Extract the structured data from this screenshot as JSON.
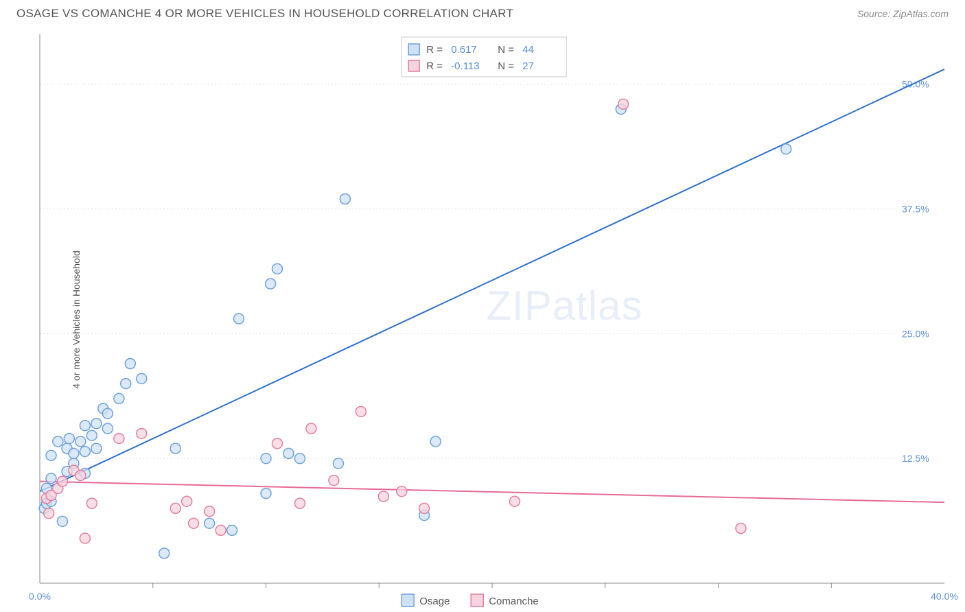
{
  "title": "OSAGE VS COMANCHE 4 OR MORE VEHICLES IN HOUSEHOLD CORRELATION CHART",
  "source": "Source: ZipAtlas.com",
  "ylabel": "4 or more Vehicles in Household",
  "watermark": "ZIPatlas",
  "chart": {
    "type": "scatter",
    "xlim": [
      0,
      40
    ],
    "ylim": [
      0,
      55
    ],
    "xtick_labels": {
      "0": "0.0%",
      "40": "40.0%"
    },
    "xtick_minor": [
      5,
      10,
      15,
      20,
      25,
      30,
      35
    ],
    "ytick_labels": {
      "12.5": "12.5%",
      "25": "25.0%",
      "37.5": "37.5%",
      "50": "50.0%"
    },
    "grid_y": [
      12.5,
      25,
      37.5,
      50
    ],
    "grid_color": "#dddddd",
    "background_color": "#ffffff",
    "marker_radius": 7.5,
    "marker_stroke_width": 1.5,
    "line_width": 2,
    "series": [
      {
        "name": "Osage",
        "fill": "#cfe1f5",
        "stroke": "#6fa1d9",
        "line_color": "#2e6fd1",
        "r": 0.617,
        "n": 44,
        "trend": {
          "x1": 0,
          "y1": 9.2,
          "x2": 40,
          "y2": 51.5
        },
        "points": [
          [
            0.2,
            7.5
          ],
          [
            0.3,
            8
          ],
          [
            0.3,
            9.5
          ],
          [
            0.5,
            8.2
          ],
          [
            0.5,
            10.5
          ],
          [
            0.5,
            12.8
          ],
          [
            0.8,
            14.2
          ],
          [
            1.0,
            6.2
          ],
          [
            1.2,
            11.2
          ],
          [
            1.2,
            13.5
          ],
          [
            1.3,
            14.5
          ],
          [
            1.5,
            12.0
          ],
          [
            1.5,
            13.0
          ],
          [
            1.8,
            14.2
          ],
          [
            2.0,
            15.8
          ],
          [
            2.0,
            13.2
          ],
          [
            2.0,
            11.0
          ],
          [
            2.3,
            14.8
          ],
          [
            2.5,
            13.5
          ],
          [
            2.5,
            16.0
          ],
          [
            2.8,
            17.5
          ],
          [
            3.0,
            15.5
          ],
          [
            3.0,
            17.0
          ],
          [
            3.5,
            18.5
          ],
          [
            3.8,
            20.0
          ],
          [
            4.0,
            22.0
          ],
          [
            4.5,
            20.5
          ],
          [
            5.5,
            3.0
          ],
          [
            6.0,
            13.5
          ],
          [
            7.5,
            6.0
          ],
          [
            8.5,
            5.3
          ],
          [
            8.8,
            26.5
          ],
          [
            10.0,
            9.0
          ],
          [
            10.0,
            12.5
          ],
          [
            10.2,
            30.0
          ],
          [
            10.5,
            31.5
          ],
          [
            11.0,
            13.0
          ],
          [
            11.5,
            12.5
          ],
          [
            13.2,
            12.0
          ],
          [
            13.5,
            38.5
          ],
          [
            17.0,
            6.8
          ],
          [
            17.5,
            14.2
          ],
          [
            25.7,
            47.5
          ],
          [
            33.0,
            43.5
          ]
        ]
      },
      {
        "name": "Comanche",
        "fill": "#f6d4dd",
        "stroke": "#e37fa0",
        "line_color": "#e86a93",
        "r": -0.113,
        "n": 27,
        "trend": {
          "x1": 0,
          "y1": 10.2,
          "x2": 40,
          "y2": 8.1
        },
        "points": [
          [
            0.3,
            8.5
          ],
          [
            0.4,
            7.0
          ],
          [
            0.5,
            8.8
          ],
          [
            0.8,
            9.5
          ],
          [
            1.0,
            10.2
          ],
          [
            1.5,
            11.3
          ],
          [
            1.8,
            10.8
          ],
          [
            2.0,
            4.5
          ],
          [
            2.3,
            8.0
          ],
          [
            3.5,
            14.5
          ],
          [
            4.5,
            15.0
          ],
          [
            6.0,
            7.5
          ],
          [
            6.5,
            8.2
          ],
          [
            6.8,
            6.0
          ],
          [
            7.5,
            7.2
          ],
          [
            8.0,
            5.3
          ],
          [
            10.5,
            14.0
          ],
          [
            11.5,
            8.0
          ],
          [
            12.0,
            15.5
          ],
          [
            13.0,
            10.3
          ],
          [
            14.2,
            17.2
          ],
          [
            15.2,
            8.7
          ],
          [
            16.0,
            9.2
          ],
          [
            17.0,
            7.5
          ],
          [
            21.0,
            8.2
          ],
          [
            25.8,
            48.0
          ],
          [
            31.0,
            5.5
          ]
        ]
      }
    ]
  },
  "legend_top": {
    "rows": [
      {
        "swatch_fill": "#cfe1f5",
        "swatch_stroke": "#6fa1d9",
        "r_label": "R =",
        "r_val": "0.617",
        "n_label": "N =",
        "n_val": "44"
      },
      {
        "swatch_fill": "#f6d4dd",
        "swatch_stroke": "#e37fa0",
        "r_label": "R =",
        "r_val": "-0.113",
        "n_label": "N =",
        "n_val": "27"
      }
    ],
    "label_color": "#555555",
    "value_color": "#5b8dd6"
  },
  "legend_bottom": {
    "items": [
      {
        "swatch_fill": "#cfe1f5",
        "swatch_stroke": "#6fa1d9",
        "label": "Osage"
      },
      {
        "swatch_fill": "#f6d4dd",
        "swatch_stroke": "#e37fa0",
        "label": "Comanche"
      }
    ]
  }
}
